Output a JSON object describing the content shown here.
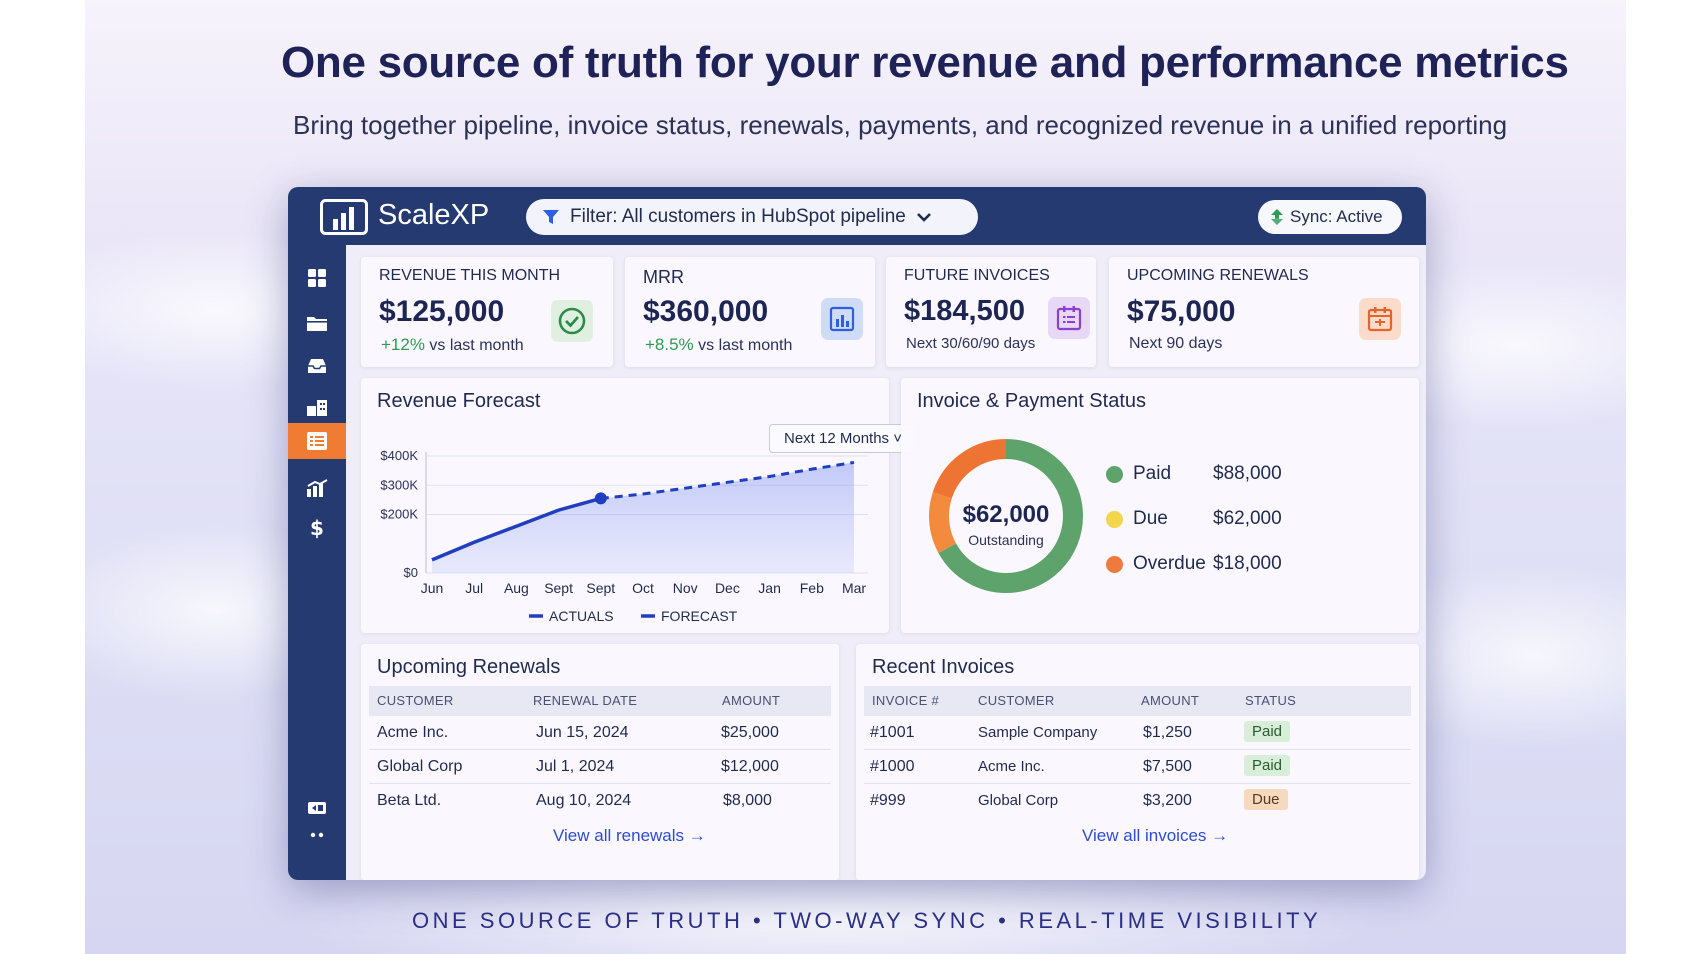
{
  "hero": {
    "headline": "One source of truth for your revenue and performance metrics",
    "subhead": "Bring together pipeline, invoice status, renewals, payments, and recognized revenue in a unified reporting",
    "tagline": "ONE SOURCE OF TRUTH • TWO-WAY SYNC • REAL-TIME VISIBILITY"
  },
  "app": {
    "brand": "ScaleXP",
    "filter_label": "Filter: All customers in HubSpot pipeline",
    "sync_label": "Sync: Active"
  },
  "sidebar": {
    "items": [
      {
        "icon": "grid-icon"
      },
      {
        "icon": "folder-icon"
      },
      {
        "icon": "inbox-icon"
      },
      {
        "icon": "building-icon"
      },
      {
        "icon": "list-icon",
        "active": true
      },
      {
        "icon": "bar-chart-icon"
      },
      {
        "icon": "dollar-icon"
      }
    ],
    "bottom": [
      {
        "icon": "switch-icon"
      },
      {
        "icon": "more-icon"
      }
    ]
  },
  "kpis": [
    {
      "title": "REVENUE THIS MONTH",
      "value": "$125,000",
      "change": "+12%",
      "note": "vs last month",
      "icon": "check-circle-icon"
    },
    {
      "title": "MRR",
      "value": "$360,000",
      "change": "+8.5%",
      "note": "vs last month",
      "icon": "report-icon"
    },
    {
      "title": "FUTURE INVOICES",
      "value": "$184,500",
      "note": "Next 30/60/90 days",
      "icon": "calendar-list-icon"
    },
    {
      "title": "UPCOMING RENEWALS",
      "value": "$75,000",
      "note": "Next 90 days",
      "icon": "calendar-icon"
    }
  ],
  "forecast": {
    "title": "Revenue Forecast",
    "range_label": "Next 12 Months ˅"
  },
  "chart_data": {
    "type": "line",
    "title": "Revenue Forecast",
    "categories": [
      "Jun",
      "Jul",
      "Aug",
      "Sept",
      "Sept",
      "Oct",
      "Nov",
      "Dec",
      "Jan",
      "Feb",
      "Mar"
    ],
    "y_ticks": [
      "$0",
      "$200K",
      "$300K",
      "$400K"
    ],
    "ylim": [
      0,
      400000
    ],
    "series": [
      {
        "name": "ACTUALS",
        "values": [
          45000,
          105000,
          160000,
          215000,
          255000,
          null,
          null,
          null,
          null,
          null,
          null
        ],
        "color": "#1f3fbf"
      },
      {
        "name": "FORECAST",
        "values": [
          null,
          null,
          null,
          null,
          255000,
          270000,
          290000,
          310000,
          330000,
          355000,
          378000
        ],
        "color": "#1f3fbf"
      }
    ],
    "legend": [
      "ACTUALS",
      "FORECAST"
    ],
    "grid": true
  },
  "payment_status": {
    "title": "Invoice & Payment Status",
    "center_value": "$62,000",
    "center_label": "Outstanding",
    "legend": [
      {
        "label": "Paid",
        "amount": "$88,000",
        "value": 88000,
        "color": "#5da36b"
      },
      {
        "label": "Due",
        "amount": "$62,000",
        "value": 62000,
        "color": "#f2d64b"
      },
      {
        "label": "Overdue",
        "amount": "$18,000",
        "value": 18000,
        "color": "#ee7a3c"
      }
    ]
  },
  "ring": {
    "segments": [
      {
        "value": 0.67,
        "color": "#5da36b"
      },
      {
        "value": 0.13,
        "color": "#f28b3d"
      },
      {
        "value": 0.2,
        "color": "#ee7433"
      }
    ]
  },
  "renewals": {
    "title": "Upcoming Renewals",
    "columns": [
      "CUSTOMER",
      "RENEWAL DATE",
      "AMOUNT"
    ],
    "rows": [
      [
        "Acme Inc.",
        "Jun 15, 2024",
        "$25,000"
      ],
      [
        "Global Corp",
        "Jul 1, 2024",
        "$12,000"
      ],
      [
        "Beta Ltd.",
        "Aug 10, 2024",
        "$8,000"
      ]
    ],
    "link": "View all renewals →"
  },
  "invoices": {
    "title": "Recent Invoices",
    "columns": [
      "INVOICE #",
      "CUSTOMER",
      "AMOUNT",
      "STATUS"
    ],
    "rows": [
      [
        "#1001",
        "Sample Company",
        "$1,250",
        "Paid"
      ],
      [
        "#1000",
        "Acme Inc.",
        "$7,500",
        "Paid"
      ],
      [
        "#999",
        "Global Corp",
        "$3,200",
        "Due"
      ]
    ],
    "link": "View all invoices →"
  }
}
